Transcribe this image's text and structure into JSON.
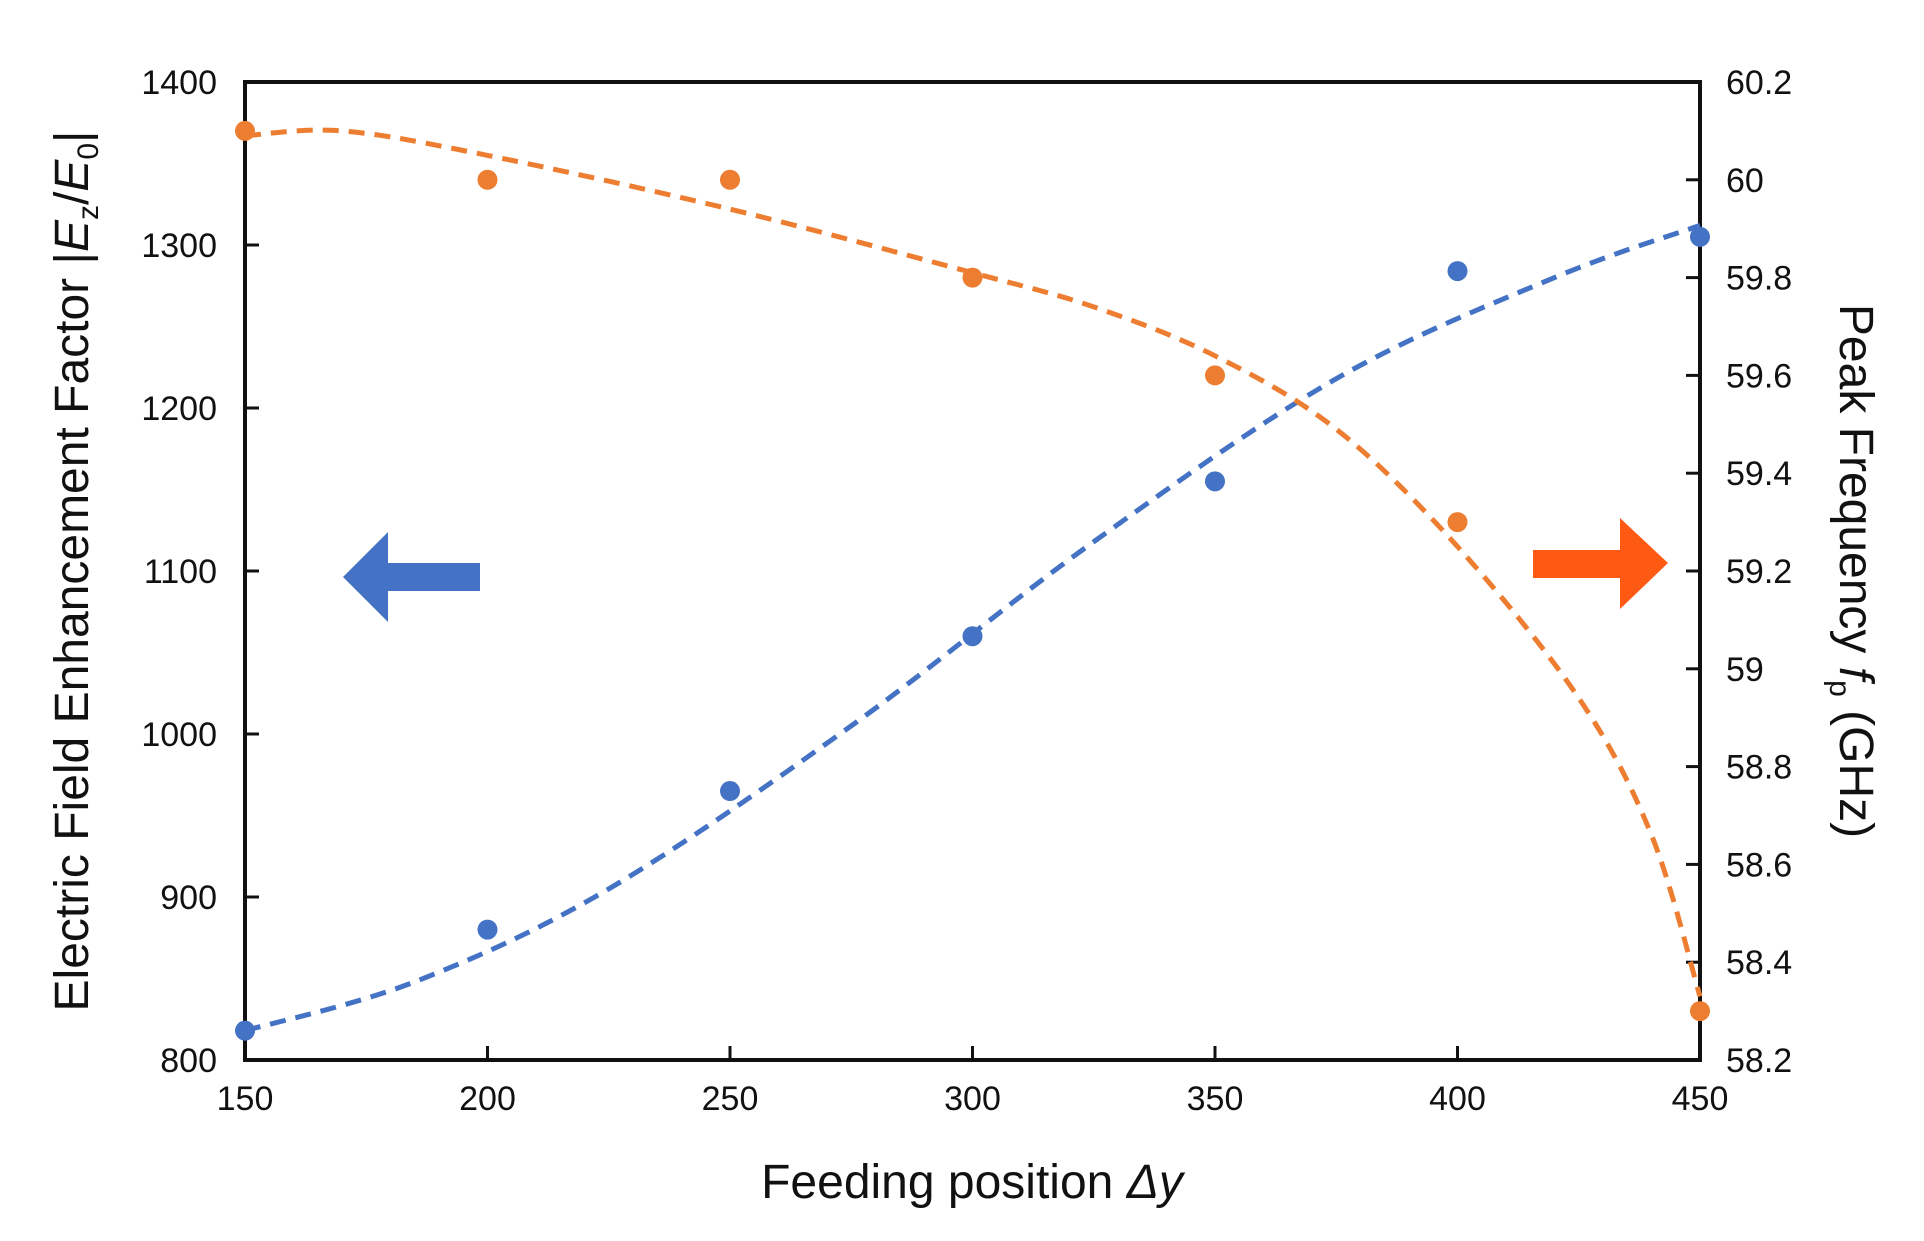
{
  "chart_data": {
    "type": "scatter",
    "title": "",
    "xlabel": "Feeding position Δy",
    "xlabel_parts": {
      "main": "Feeding position ",
      "var": "Δy"
    },
    "ylabel_left": "Electric Field Enhancement Factor |Ez/E0|",
    "ylabel_left_parts": {
      "main": "Electric Field Enhancement Factor |",
      "num": "E",
      "num_sub": "z",
      "sep": "/",
      "den": "E",
      "den_sub": "0",
      "close": "|"
    },
    "ylabel_right": "Peak Frequency fp (GHz)",
    "ylabel_right_parts": {
      "main": "Peak Frequency ",
      "var": "f",
      "var_sub": "p",
      "unit": " (GHz)"
    },
    "xlim": [
      150,
      450
    ],
    "ylim_left": [
      800,
      1400
    ],
    "ylim_right": [
      58.2,
      60.2
    ],
    "x_ticks": [
      "150",
      "200",
      "250",
      "300",
      "350",
      "400",
      "450"
    ],
    "y_left_ticks": [
      "800",
      "900",
      "1000",
      "1100",
      "1200",
      "1300",
      "1400"
    ],
    "y_right_ticks": [
      "58.2",
      "58.4",
      "58.6",
      "58.8",
      "59",
      "59.2",
      "59.4",
      "59.6",
      "59.8",
      "60",
      "60.2"
    ],
    "grid": false,
    "series": [
      {
        "name": "Electric Field Enhancement Factor",
        "axis": "left",
        "color": "#4472c4",
        "x": [
          150,
          200,
          250,
          300,
          350,
          400,
          450
        ],
        "values": [
          818,
          880,
          965,
          1060,
          1155,
          1284,
          1305
        ],
        "trend": {
          "x": [
            150,
            185,
            225,
            275,
            325,
            375,
            420,
            450
          ],
          "values": [
            818,
            848,
            905,
            1005,
            1118,
            1218,
            1280,
            1312
          ]
        }
      },
      {
        "name": "Peak Frequency",
        "axis": "right",
        "color": "#ed7d31",
        "x": [
          150,
          200,
          250,
          300,
          350,
          400,
          450
        ],
        "values": [
          60.1,
          60.0,
          60.0,
          59.8,
          59.6,
          59.3,
          58.3
        ],
        "trend": {
          "x": [
            150,
            170,
            200,
            250,
            300,
            325,
            350,
            375,
            400,
            425,
            440,
            450
          ],
          "values": [
            60.09,
            60.1,
            60.05,
            59.94,
            59.81,
            59.74,
            59.64,
            59.49,
            59.25,
            58.94,
            58.66,
            58.33
          ]
        }
      }
    ],
    "annotations": [
      {
        "type": "arrow",
        "direction": "left",
        "color": "#4472c4",
        "meaning": "left axis"
      },
      {
        "type": "arrow",
        "direction": "right",
        "color": "#ff5a14",
        "meaning": "right axis"
      }
    ]
  }
}
